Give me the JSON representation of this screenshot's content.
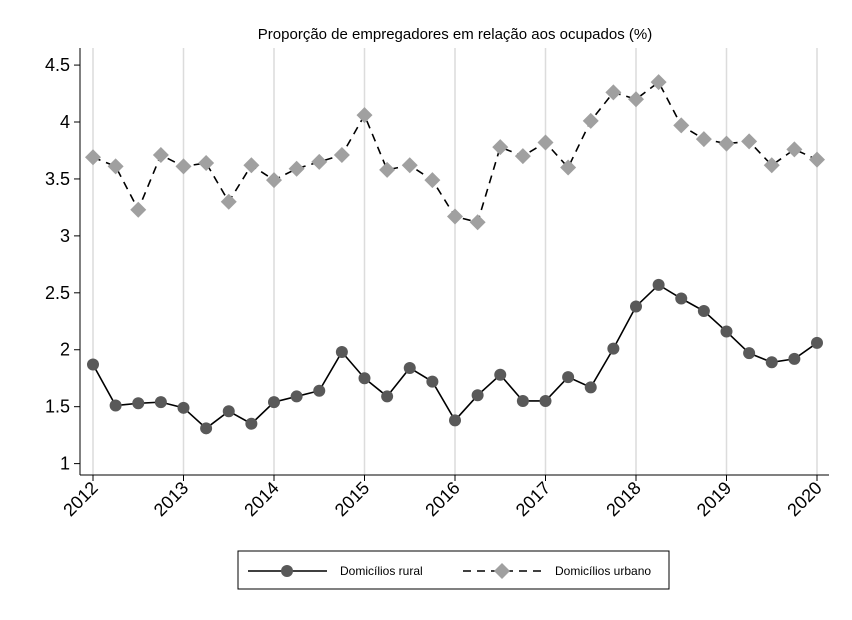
{
  "chart_data": {
    "type": "line",
    "title": "Proporção de empregadores em relação aos ocupados (%)",
    "xlabel": "",
    "ylabel": "",
    "xlim": [
      2012,
      2020
    ],
    "ylim": [
      0.9,
      4.65
    ],
    "y_ticks": [
      1,
      1.5,
      2,
      2.5,
      3,
      3.5,
      4,
      4.5
    ],
    "y_tick_labels": [
      "1",
      "1.5",
      "2",
      "2.5",
      "3",
      "3.5",
      "4",
      "4.5"
    ],
    "x_ticks": [
      2012,
      2013,
      2014,
      2015,
      2016,
      2017,
      2018,
      2019,
      2020
    ],
    "x_tick_labels": [
      "2012",
      "2013",
      "2014",
      "2015",
      "2016",
      "2017",
      "2018",
      "2019",
      "2020"
    ],
    "grid": "vertical",
    "legend_position": "bottom",
    "x": [
      2012,
      2012.25,
      2012.5,
      2012.75,
      2013,
      2013.25,
      2013.5,
      2013.75,
      2014,
      2014.25,
      2014.5,
      2014.75,
      2015,
      2015.25,
      2015.5,
      2015.75,
      2016,
      2016.25,
      2016.5,
      2016.75,
      2017,
      2017.25,
      2017.5,
      2017.75,
      2018,
      2018.25,
      2018.5,
      2018.75,
      2019,
      2019.25,
      2019.5,
      2019.75,
      2020
    ],
    "series": [
      {
        "name": "Domicílios rural",
        "color": "#595959",
        "line_style": "solid",
        "marker": "circle",
        "values": [
          1.87,
          1.51,
          1.53,
          1.54,
          1.49,
          1.31,
          1.46,
          1.35,
          1.54,
          1.59,
          1.64,
          1.98,
          1.75,
          1.59,
          1.84,
          1.72,
          1.38,
          1.6,
          1.78,
          1.55,
          1.55,
          1.76,
          1.67,
          2.01,
          2.38,
          2.57,
          2.45,
          2.34,
          2.16,
          1.97,
          1.89,
          1.92,
          2.06
        ]
      },
      {
        "name": "Domicílios urbano",
        "color": "#a0a0a0",
        "line_style": "dashed",
        "marker": "diamond",
        "values": [
          3.69,
          3.61,
          3.23,
          3.71,
          3.61,
          3.64,
          3.3,
          3.62,
          3.49,
          3.59,
          3.65,
          3.71,
          4.06,
          3.58,
          3.62,
          3.49,
          3.17,
          3.12,
          3.78,
          3.7,
          3.82,
          3.6,
          4.01,
          4.26,
          4.2,
          4.35,
          3.97,
          3.85,
          3.81,
          3.83,
          3.62,
          3.76,
          3.67
        ]
      }
    ]
  }
}
